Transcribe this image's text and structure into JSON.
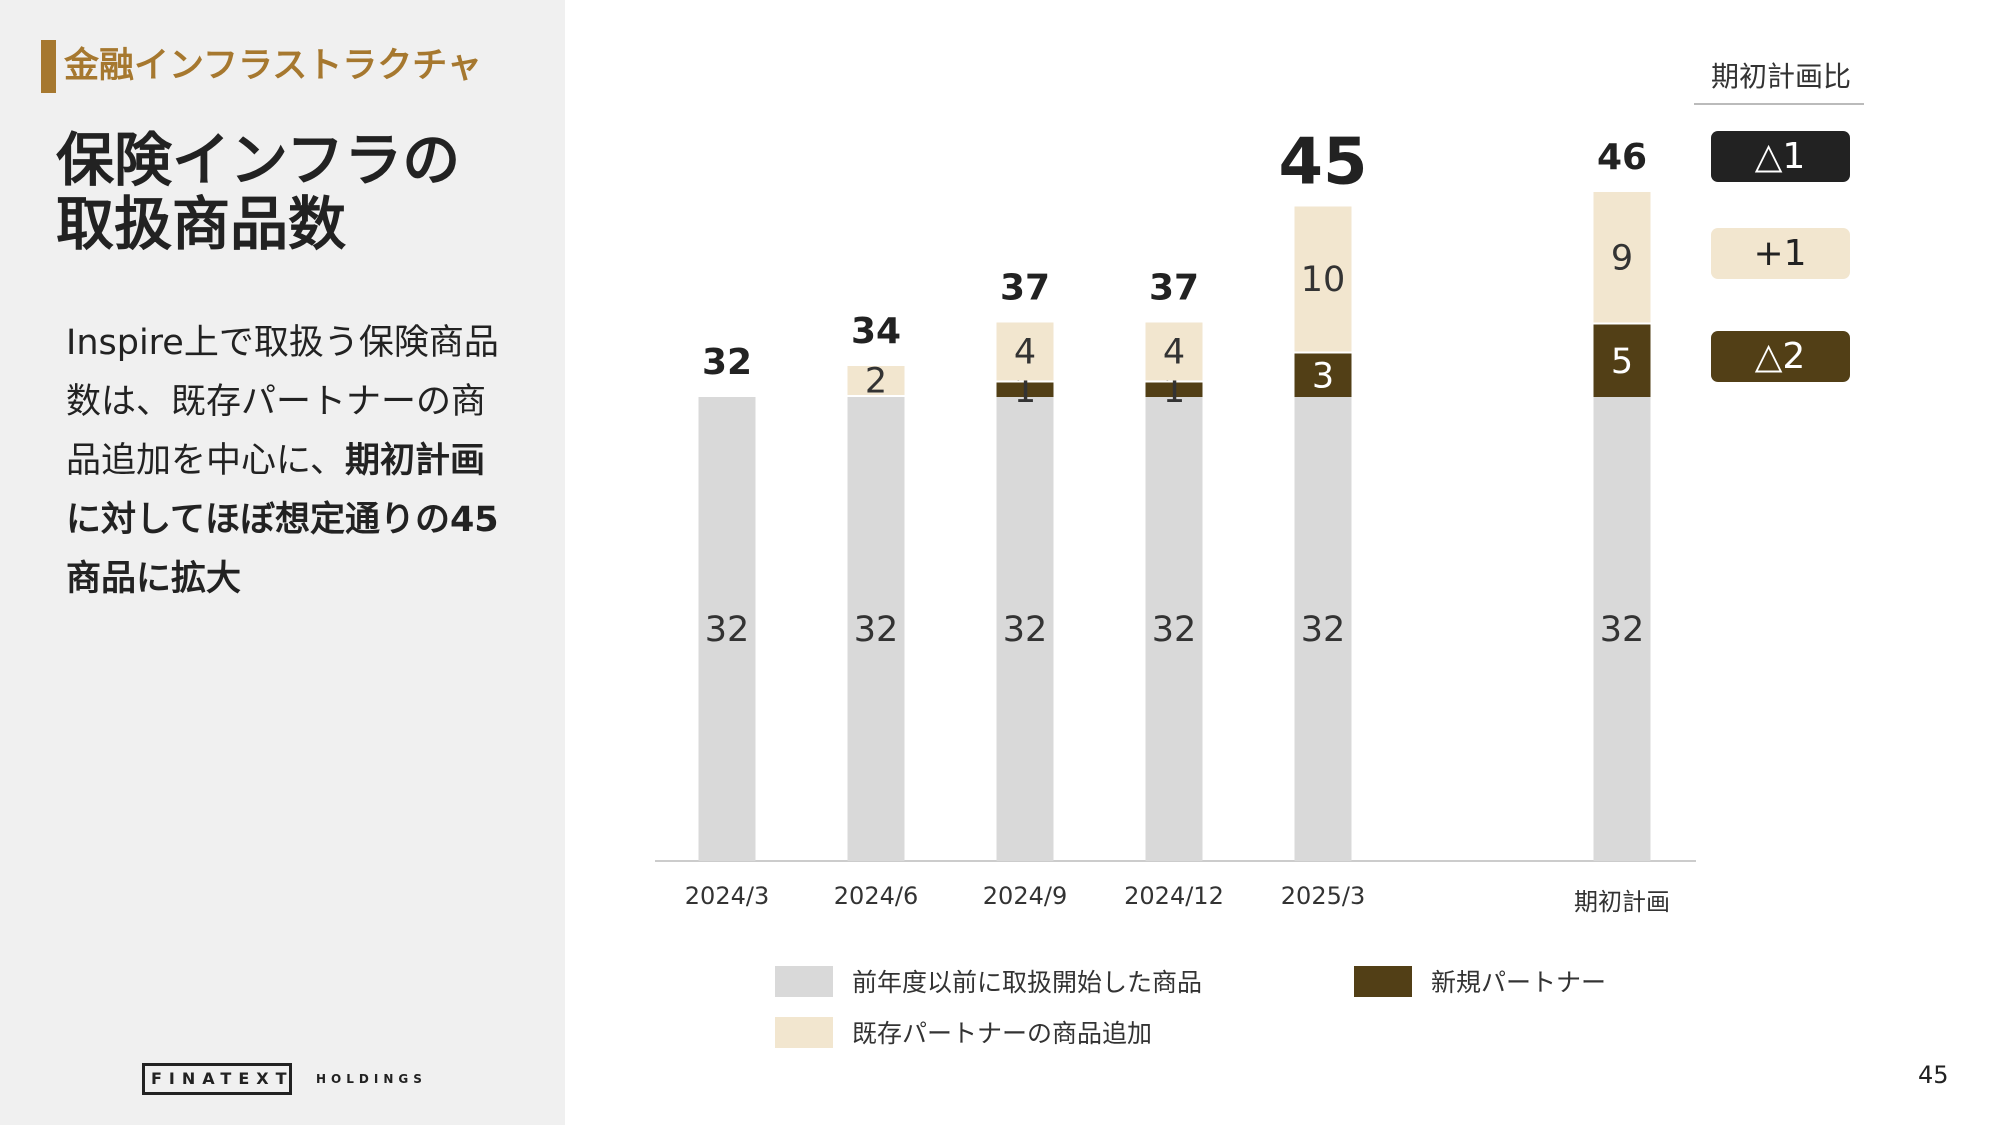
{
  "section": {
    "category": "金融インフラストラクチャ",
    "title_line1": "保険インフラの",
    "title_line2": "取扱商品数",
    "desc_part1": "Inspire上で取扱う保険商品数は、既存パートナーの商品追加を中心に、",
    "desc_part2": "期初計画に対してほぼ想定通りの45商品に拡大"
  },
  "logo": {
    "name": "FINATEXT",
    "sub": "HOLDINGS"
  },
  "page_number": "45",
  "chart_data": {
    "type": "bar",
    "stacked": true,
    "categories": [
      "2024/3",
      "2024/6",
      "2024/9",
      "2024/12",
      "2025/3",
      "期初計画"
    ],
    "series": [
      {
        "name": "前年度以前に取扱開始した商品",
        "values": [
          32,
          32,
          32,
          32,
          32,
          32
        ],
        "color": "#d9d9d9"
      },
      {
        "name": "新規パートナー",
        "values": [
          0,
          0,
          1,
          1,
          3,
          5
        ],
        "color": "#523f16"
      },
      {
        "name": "既存パートナーの商品追加",
        "values": [
          0,
          2,
          4,
          4,
          10,
          9
        ],
        "color": "#f2e6cf"
      }
    ],
    "totals": [
      32,
      34,
      37,
      37,
      45,
      46
    ],
    "highlight_total_index": 4,
    "legend_order": [
      "前年度以前に取扱開始した商品",
      "新規パートナー",
      "既存パートナーの商品追加"
    ],
    "comparison": {
      "title": "期初計画比",
      "items": [
        {
          "label": "△1",
          "bg": "#222222",
          "fg": "#ffffff"
        },
        {
          "label": "+1",
          "bg": "#f2e6cf",
          "fg": "#222222"
        },
        {
          "label": "△2",
          "bg": "#523f16",
          "fg": "#ffffff"
        }
      ]
    },
    "grid": false
  }
}
